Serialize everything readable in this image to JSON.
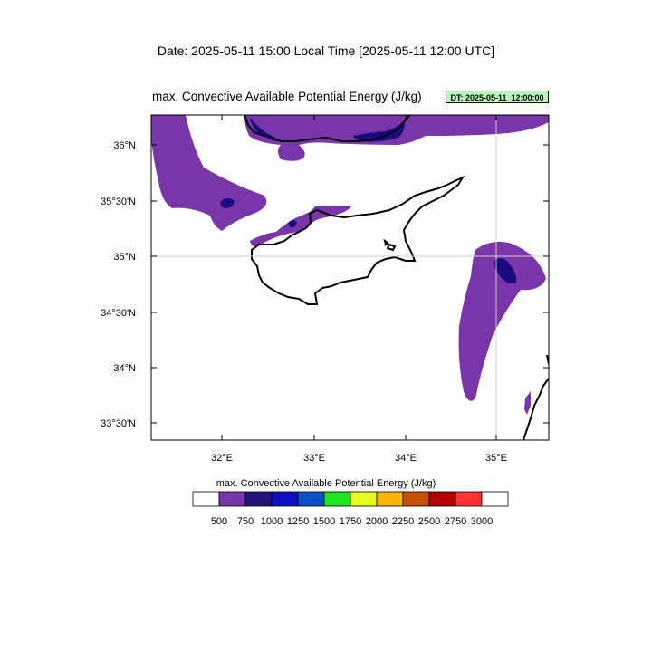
{
  "header": {
    "date_line": "Date: 2025-05-11  15:00 Local Time [2025-05-11  12:00 UTC]"
  },
  "map": {
    "title": "max. Convective Available Potential Energy   (J/kg)",
    "dt_badge": "DT: 2025-05-11_12:00:00",
    "lat_labels": [
      "36°N",
      "35°30'N",
      "35°N",
      "34°30'N",
      "34°N",
      "33°30'N"
    ],
    "lon_labels": [
      "32°E",
      "33°E",
      "34°E",
      "35°E"
    ],
    "field_color": "#7a35a8",
    "field_dark_color": "#1a0a80"
  },
  "colorbar": {
    "title": "max. Convective Available Potential Energy  (J/kg)",
    "levels": [
      "500",
      "750",
      "1000",
      "1250",
      "1500",
      "1750",
      "2000",
      "2250",
      "2500",
      "2750",
      "3000"
    ],
    "colors": [
      "#ffffff",
      "#7a35a8",
      "#28127f",
      "#0f0fc8",
      "#0a50c8",
      "#1ee61e",
      "#e6ff1e",
      "#ffb400",
      "#c85000",
      "#b40000",
      "#ff3232",
      "#ffffff"
    ]
  }
}
